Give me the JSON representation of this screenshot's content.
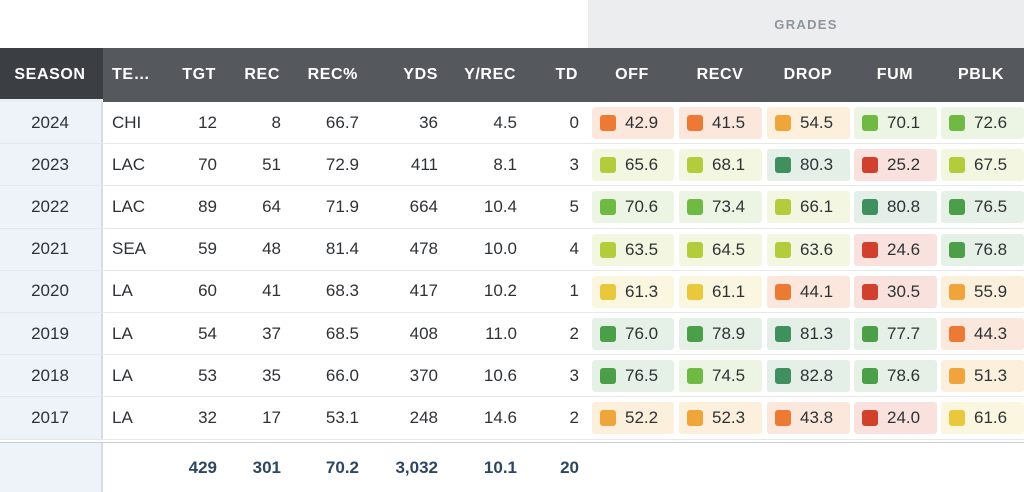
{
  "grades_header": "GRADES",
  "columns": {
    "season": "SEASON",
    "team": "TE…",
    "tgt": "TGT",
    "rec": "REC",
    "rec_pct": "REC%",
    "yds": "YDS",
    "y_rec": "Y/REC",
    "td": "TD",
    "off": "OFF",
    "recv": "RECV",
    "drop": "DROP",
    "fum": "FUM",
    "pblk": "PBLK"
  },
  "rows": [
    {
      "season": "2024",
      "team": "CHI",
      "tgt": "12",
      "rec": "8",
      "rec_pct": "66.7",
      "yds": "36",
      "y_rec": "4.5",
      "td": "0",
      "off": "42.9",
      "recv": "41.5",
      "drop": "54.5",
      "fum": "70.1",
      "pblk": "72.6"
    },
    {
      "season": "2023",
      "team": "LAC",
      "tgt": "70",
      "rec": "51",
      "rec_pct": "72.9",
      "yds": "411",
      "y_rec": "8.1",
      "td": "3",
      "off": "65.6",
      "recv": "68.1",
      "drop": "80.3",
      "fum": "25.2",
      "pblk": "67.5"
    },
    {
      "season": "2022",
      "team": "LAC",
      "tgt": "89",
      "rec": "64",
      "rec_pct": "71.9",
      "yds": "664",
      "y_rec": "10.4",
      "td": "5",
      "off": "70.6",
      "recv": "73.4",
      "drop": "66.1",
      "fum": "80.8",
      "pblk": "76.5"
    },
    {
      "season": "2021",
      "team": "SEA",
      "tgt": "59",
      "rec": "48",
      "rec_pct": "81.4",
      "yds": "478",
      "y_rec": "10.0",
      "td": "4",
      "off": "63.5",
      "recv": "64.5",
      "drop": "63.6",
      "fum": "24.6",
      "pblk": "76.8"
    },
    {
      "season": "2020",
      "team": "LA",
      "tgt": "60",
      "rec": "41",
      "rec_pct": "68.3",
      "yds": "417",
      "y_rec": "10.2",
      "td": "1",
      "off": "61.3",
      "recv": "61.1",
      "drop": "44.1",
      "fum": "30.5",
      "pblk": "55.9"
    },
    {
      "season": "2019",
      "team": "LA",
      "tgt": "54",
      "rec": "37",
      "rec_pct": "68.5",
      "yds": "408",
      "y_rec": "11.0",
      "td": "2",
      "off": "76.0",
      "recv": "78.9",
      "drop": "81.3",
      "fum": "77.7",
      "pblk": "44.3"
    },
    {
      "season": "2018",
      "team": "LA",
      "tgt": "53",
      "rec": "35",
      "rec_pct": "66.0",
      "yds": "370",
      "y_rec": "10.6",
      "td": "3",
      "off": "76.5",
      "recv": "74.5",
      "drop": "82.8",
      "fum": "78.6",
      "pblk": "51.3"
    },
    {
      "season": "2017",
      "team": "LA",
      "tgt": "32",
      "rec": "17",
      "rec_pct": "53.1",
      "yds": "248",
      "y_rec": "14.6",
      "td": "2",
      "off": "52.2",
      "recv": "52.3",
      "drop": "43.8",
      "fum": "24.0",
      "pblk": "61.6"
    }
  ],
  "totals": {
    "tgt": "429",
    "rec": "301",
    "rec_pct": "70.2",
    "yds": "3,032",
    "y_rec": "10.1",
    "td": "20"
  },
  "grade_colors": {
    "high": {
      "square": "#4c9f49",
      "bg": "#e5f0e6"
    },
    "good": {
      "square": "#6fba43",
      "bg": "#ecf5e3"
    },
    "above": {
      "square": "#b3cc3c",
      "bg": "#f3f7e1"
    },
    "average": {
      "square": "#e9c93b",
      "bg": "#fbf6df"
    },
    "below": {
      "square": "#f0a53a",
      "bg": "#fcf0dd"
    },
    "low": {
      "square": "#ec7a35",
      "bg": "#fbe7dc"
    },
    "poor": {
      "square": "#d0402c",
      "bg": "#f9e1dd"
    },
    "elite": {
      "square": "#3f8f5f",
      "bg": "#e3efe7"
    }
  }
}
